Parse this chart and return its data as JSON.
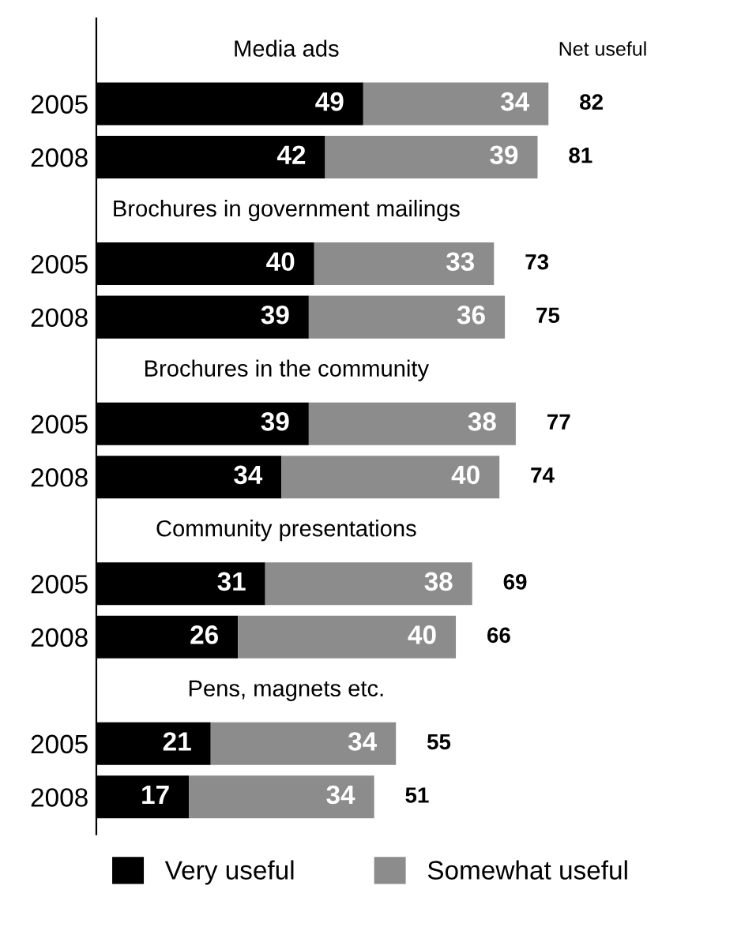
{
  "chart_data": {
    "type": "bar",
    "orientation": "horizontal",
    "stacked": true,
    "data_labels": true,
    "categories": [
      "2005",
      "2008",
      "2005",
      "2008",
      "2005",
      "2008",
      "2005",
      "2008",
      "2005",
      "2008"
    ],
    "series": [
      {
        "name": "Very useful",
        "color": "#000000",
        "values": [
          49,
          42,
          40,
          39,
          39,
          34,
          31,
          26,
          21,
          17
        ]
      },
      {
        "name": "Somewhat useful",
        "color": "#8c8c8c",
        "values": [
          34,
          39,
          33,
          36,
          38,
          40,
          38,
          40,
          34,
          34
        ]
      }
    ],
    "totals": [
      "82",
      "81",
      "73",
      "75",
      "77",
      "74",
      "69",
      "66",
      "55",
      "51"
    ],
    "annotations": [
      "Net useful",
      "Media ads",
      "Brochures in government mailings",
      "Brochures in the community",
      "Community presentations",
      "Pens, magnets etc."
    ],
    "legend": "bottom",
    "grid": false,
    "tick_labels": "y"
  }
}
